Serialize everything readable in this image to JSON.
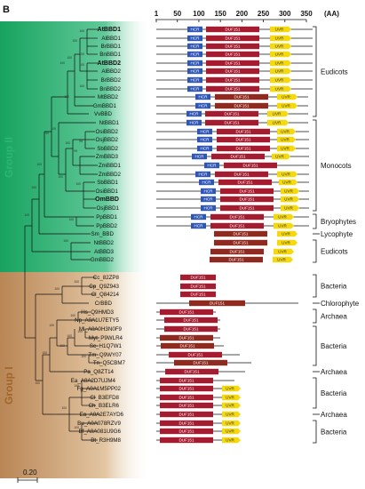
{
  "panel_label": "B",
  "axis": {
    "ticks": [
      "1",
      "50",
      "100",
      "150",
      "200",
      "250",
      "300",
      "350"
    ],
    "unit": "(AA)"
  },
  "groups": [
    {
      "label": "Group II",
      "color": "#2bb673"
    },
    {
      "label": "Group I",
      "color": "#a0652b"
    }
  ],
  "domain_colors": {
    "HCR": "#2f56b5",
    "DUF151": "#a51c30",
    "DUF151_alt": "#8e2a1f",
    "UVR": "#f5d90c"
  },
  "domain_labels": {
    "hcr": "HCR",
    "duf": "DUF151",
    "uvr": "UVR"
  },
  "scale_bar": "0.20",
  "proteins": [
    {
      "name": "AtBBD1",
      "bold": true
    },
    {
      "name": "AlBBD1"
    },
    {
      "name": "BrBBD1"
    },
    {
      "name": "BnBBD1"
    },
    {
      "name": "AtBBD2",
      "bold": true
    },
    {
      "name": "AlBBD2"
    },
    {
      "name": "BrBBD2"
    },
    {
      "name": "BnBBD2"
    },
    {
      "name": "MtBBD2"
    },
    {
      "name": "GmBBD1"
    },
    {
      "name": "VvBBD"
    },
    {
      "name": "NtBBD1"
    },
    {
      "name": "OsiBBD2"
    },
    {
      "name": "OsjBBD2"
    },
    {
      "name": "SbBBD2"
    },
    {
      "name": "ZmBBD3"
    },
    {
      "name": "ZmBBD1"
    },
    {
      "name": "ZmBBD2"
    },
    {
      "name": "SbBBD1"
    },
    {
      "name": "OsiBBD1"
    },
    {
      "name": "OmBBD",
      "bold": true
    },
    {
      "name": "OsjBBD1"
    },
    {
      "name": "PpBBD1"
    },
    {
      "name": "PpBBD2"
    },
    {
      "name": "Sm_BBD"
    },
    {
      "name": "NtBBD2"
    },
    {
      "name": "AtBBD3"
    },
    {
      "name": "GmBBD2"
    },
    {
      "name": "Cc_82ZP8"
    },
    {
      "name": "Cp_Q9Z943"
    },
    {
      "name": "Cl_Q84214"
    },
    {
      "name": "CrBBD"
    },
    {
      "name": "Hs_Q9HMD3"
    },
    {
      "name": "Np_A0A1U7ETY5"
    },
    {
      "name": "Ml_A0A0H3N0F9"
    },
    {
      "name": "Myt_P9WLR4"
    },
    {
      "name": "Sc_H1Q7W1"
    },
    {
      "name": "Tm_Q9WY07"
    },
    {
      "name": "Tn_Q5CBM7"
    },
    {
      "name": "Pa_Q8ZT14"
    },
    {
      "name": "Ea_A0A2D7UJM4"
    },
    {
      "name": "Fg_A0A1M5PP02"
    },
    {
      "name": "Cl_B3EFD8"
    },
    {
      "name": "Ch_B3ELR6"
    },
    {
      "name": "Ea_A0A2E7AYD6"
    },
    {
      "name": "Bu_A0A078RZV9"
    },
    {
      "name": "Bf_A0A081U9G6"
    },
    {
      "name": "Bt_R3H9M8"
    }
  ],
  "taxa": [
    {
      "label": "Eudicots"
    },
    {
      "label": "Monocots"
    },
    {
      "label": "Bryophytes"
    },
    {
      "label": "Lycophyte"
    },
    {
      "label": "Eudicots"
    },
    {
      "label": "Bacteria"
    },
    {
      "label": "Chlorophyte"
    },
    {
      "label": "Archaea"
    },
    {
      "label": "Bacteria"
    },
    {
      "label": "Archaea"
    },
    {
      "label": "Bacteria"
    },
    {
      "label": "Archaea"
    },
    {
      "label": "Bacteria"
    }
  ],
  "bootstrap_values": [
    "100",
    "100",
    "100",
    "100",
    "100",
    "100",
    "100",
    "100",
    "98",
    "99",
    "100",
    "100",
    "100",
    "100",
    "100",
    "100",
    "100",
    "100",
    "100",
    "100",
    "100",
    "100",
    "100",
    "100",
    "100",
    "100",
    "100",
    "100",
    "100",
    "100",
    "100",
    "100",
    "100"
  ]
}
